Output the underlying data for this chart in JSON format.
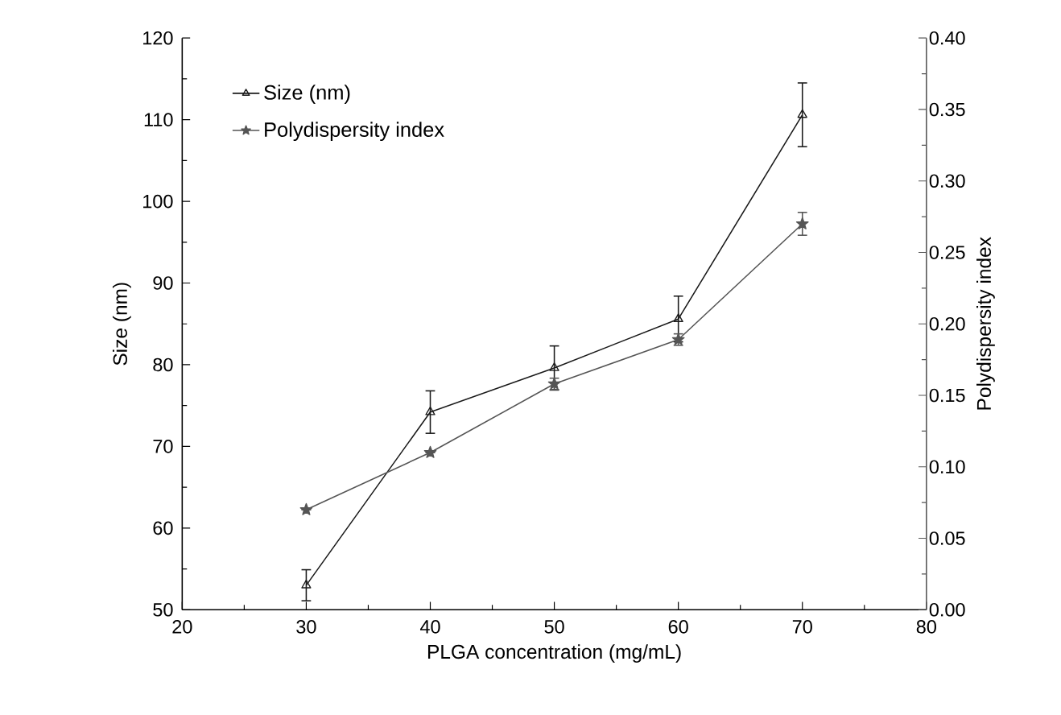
{
  "chart_data": {
    "type": "line",
    "xlabel": "PLGA concentration (mg/mL)",
    "ylabel": "Size (nm)",
    "y2label": "Polydispersity index",
    "x": [
      30,
      40,
      50,
      60,
      70
    ],
    "series": [
      {
        "name": "Size (nm)",
        "color": "#1a1a1a",
        "marker": "triangle",
        "values": [
          53.0,
          74.2,
          79.6,
          85.6,
          110.6
        ],
        "errors": [
          1.9,
          2.6,
          2.7,
          2.8,
          3.9
        ]
      },
      {
        "name": "Polydispersity index",
        "color": "#555555",
        "marker": "star",
        "axis": "y2",
        "values": [
          0.07,
          0.11,
          0.158,
          0.189,
          0.27
        ],
        "errors": [
          null,
          null,
          0.004,
          0.004,
          0.008
        ]
      }
    ],
    "xlim": [
      20,
      80
    ],
    "xticks": [
      20,
      30,
      40,
      50,
      60,
      70,
      80
    ],
    "ylim": [
      50,
      120
    ],
    "yticks": [
      50,
      60,
      70,
      80,
      90,
      100,
      110,
      120
    ],
    "y2lim": [
      0,
      0.4
    ],
    "y2ticks": [
      {
        "value": 0,
        "label": "0.00"
      },
      {
        "value": 0.05,
        "label": "0.05"
      },
      {
        "value": 0.1,
        "label": "0.10"
      },
      {
        "value": 0.15,
        "label": "0.15"
      },
      {
        "value": 0.2,
        "label": "0.20"
      },
      {
        "value": 0.25,
        "label": "0.25"
      },
      {
        "value": 0.3,
        "label": "0.30"
      },
      {
        "value": 0.35,
        "label": "0.35"
      },
      {
        "value": 0.4,
        "label": "0.40"
      }
    ],
    "legend": "top left",
    "grid": false,
    "line_style": "solid"
  }
}
